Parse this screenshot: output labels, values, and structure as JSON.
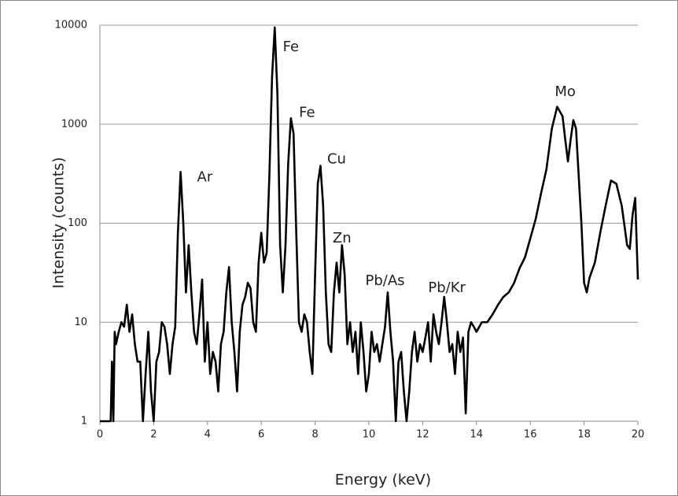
{
  "chart_data": {
    "type": "line",
    "xlabel": "Energy (keV)",
    "ylabel": "Intensity (counts)",
    "x": [
      0,
      0.1,
      0.2,
      0.3,
      0.4,
      0.45,
      0.5,
      0.55,
      0.6,
      0.7,
      0.8,
      0.9,
      1.0,
      1.1,
      1.2,
      1.3,
      1.4,
      1.5,
      1.6,
      1.7,
      1.8,
      1.9,
      2.0,
      2.1,
      2.2,
      2.3,
      2.4,
      2.5,
      2.6,
      2.7,
      2.8,
      2.9,
      3.0,
      3.1,
      3.2,
      3.3,
      3.4,
      3.5,
      3.6,
      3.7,
      3.8,
      3.9,
      4.0,
      4.1,
      4.2,
      4.3,
      4.4,
      4.5,
      4.6,
      4.7,
      4.8,
      4.9,
      5.0,
      5.1,
      5.2,
      5.3,
      5.4,
      5.5,
      5.6,
      5.7,
      5.8,
      5.9,
      6.0,
      6.1,
      6.2,
      6.3,
      6.4,
      6.5,
      6.6,
      6.7,
      6.8,
      6.9,
      7.0,
      7.1,
      7.2,
      7.3,
      7.4,
      7.5,
      7.6,
      7.7,
      7.8,
      7.9,
      8.0,
      8.1,
      8.2,
      8.3,
      8.4,
      8.5,
      8.6,
      8.7,
      8.8,
      8.9,
      9.0,
      9.1,
      9.2,
      9.3,
      9.4,
      9.5,
      9.6,
      9.7,
      9.8,
      9.9,
      10.0,
      10.1,
      10.2,
      10.3,
      10.4,
      10.5,
      10.6,
      10.7,
      10.8,
      10.9,
      11.0,
      11.1,
      11.2,
      11.3,
      11.4,
      11.5,
      11.6,
      11.7,
      11.8,
      11.9,
      12.0,
      12.1,
      12.2,
      12.3,
      12.4,
      12.5,
      12.6,
      12.7,
      12.8,
      12.9,
      13.0,
      13.1,
      13.2,
      13.3,
      13.4,
      13.5,
      13.6,
      13.7,
      13.8,
      13.9,
      14.0,
      14.2,
      14.4,
      14.6,
      14.8,
      15.0,
      15.2,
      15.4,
      15.6,
      15.8,
      16.0,
      16.2,
      16.4,
      16.6,
      16.8,
      17.0,
      17.2,
      17.3,
      17.4,
      17.5,
      17.6,
      17.7,
      17.8,
      17.9,
      18.0,
      18.1,
      18.2,
      18.4,
      18.6,
      18.8,
      19.0,
      19.2,
      19.4,
      19.6,
      19.7,
      19.8,
      19.9,
      20.0
    ],
    "values": [
      1,
      1,
      1,
      1,
      1,
      4,
      1,
      8,
      6,
      8,
      10,
      9,
      15,
      8,
      12,
      6,
      4,
      4,
      1,
      3,
      8,
      2,
      1,
      4,
      5,
      10,
      9,
      6,
      3,
      6,
      9,
      80,
      330,
      100,
      20,
      60,
      20,
      8,
      6,
      12,
      27,
      4,
      10,
      3,
      5,
      4,
      2,
      6,
      8,
      20,
      36,
      10,
      5,
      2,
      8,
      15,
      18,
      25,
      22,
      10,
      8,
      40,
      80,
      40,
      50,
      300,
      3000,
      9500,
      2000,
      60,
      20,
      60,
      400,
      1150,
      800,
      80,
      10,
      8,
      12,
      10,
      5,
      3,
      30,
      250,
      380,
      150,
      20,
      6,
      5,
      20,
      40,
      20,
      60,
      30,
      6,
      10,
      5,
      8,
      3,
      10,
      5,
      2,
      3,
      8,
      5,
      6,
      4,
      6,
      9,
      20,
      8,
      4,
      1,
      4,
      5,
      2,
      1,
      2,
      5,
      8,
      4,
      6,
      5,
      7,
      10,
      4,
      12,
      8,
      6,
      10,
      18,
      10,
      5,
      6,
      3,
      8,
      5,
      7,
      1.2,
      8,
      10,
      9,
      8,
      10,
      10,
      12,
      15,
      18,
      20,
      25,
      35,
      45,
      70,
      110,
      200,
      350,
      900,
      1500,
      1200,
      700,
      420,
      700,
      1100,
      900,
      300,
      100,
      25,
      20,
      28,
      40,
      80,
      150,
      270,
      250,
      150,
      60,
      55,
      120,
      180,
      27
    ],
    "color": "#000000",
    "xlim": [
      0,
      20
    ],
    "xticks": [
      0,
      2,
      4,
      6,
      8,
      10,
      12,
      14,
      16,
      18,
      20
    ],
    "ylim": [
      1,
      10000
    ],
    "yticks": [
      1,
      10,
      100,
      1000,
      10000
    ],
    "yscale": "log",
    "grid": true,
    "annotations": [
      {
        "text": "Ar",
        "x": 3.9,
        "y": 290
      },
      {
        "text": "Fe",
        "x": 7.1,
        "y": 6000
      },
      {
        "text": "Fe",
        "x": 7.7,
        "y": 1300
      },
      {
        "text": "Cu",
        "x": 8.8,
        "y": 440
      },
      {
        "text": "Zn",
        "x": 9.0,
        "y": 70
      },
      {
        "text": "Pb/As",
        "x": 10.6,
        "y": 26
      },
      {
        "text": "Pb/Kr",
        "x": 12.9,
        "y": 22
      },
      {
        "text": "Mo",
        "x": 17.3,
        "y": 2100
      }
    ]
  }
}
